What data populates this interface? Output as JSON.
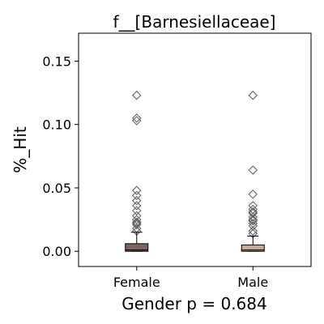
{
  "chart_data": {
    "type": "box",
    "title": "f__[Barnesiellaceae]",
    "ylabel": "%_Hit",
    "xlabel": "Gender p = 0.684",
    "categories": [
      "Female",
      "Male"
    ],
    "ylim": [
      -0.012,
      0.172
    ],
    "yticks": [
      0.0,
      0.05,
      0.1,
      0.15
    ],
    "ytick_labels": [
      "0.00",
      "0.05",
      "0.10",
      "0.15"
    ],
    "grid": false,
    "legend": "none",
    "boxes": [
      {
        "name": "Female",
        "color": "#7b6560",
        "q1": 0.0,
        "median": 0.001,
        "q3": 0.006,
        "whisker_low": 0.0,
        "whisker_high": 0.015,
        "outliers": [
          0.123,
          0.105,
          0.103,
          0.048,
          0.044,
          0.04,
          0.036,
          0.032,
          0.028,
          0.025,
          0.023,
          0.022,
          0.021,
          0.018,
          0.016
        ]
      },
      {
        "name": "Male",
        "color": "#c3aa9b",
        "q1": 0.0,
        "median": 0.001,
        "q3": 0.005,
        "whisker_low": 0.0,
        "whisker_high": 0.012,
        "outliers": [
          0.123,
          0.064,
          0.045,
          0.036,
          0.033,
          0.031,
          0.03,
          0.027,
          0.025,
          0.024,
          0.022,
          0.02,
          0.016,
          0.014
        ]
      }
    ]
  }
}
